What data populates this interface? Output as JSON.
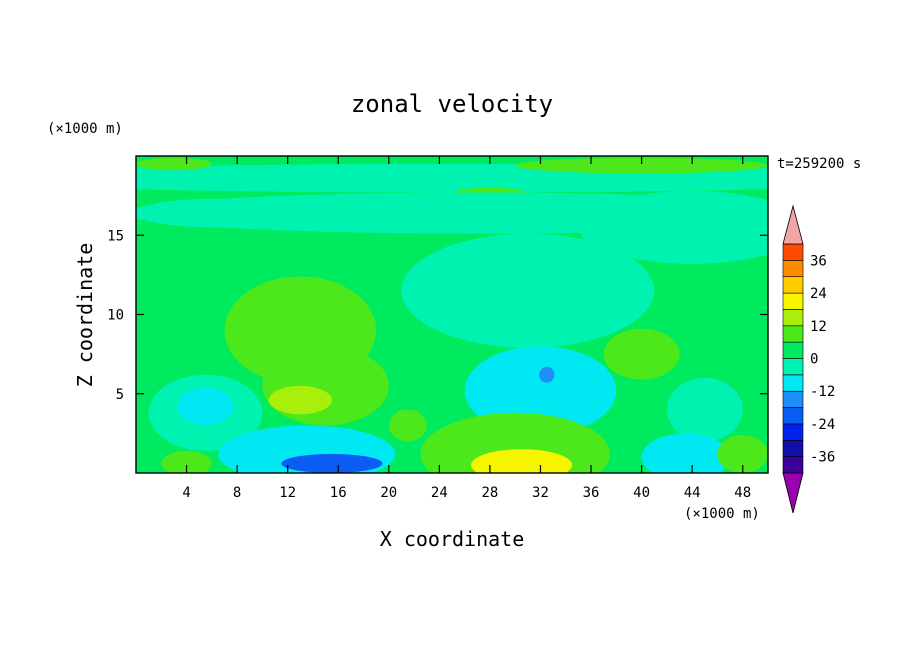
{
  "chart_data": {
    "type": "heatmap",
    "title": "zonal velocity",
    "xlabel": "X coordinate",
    "ylabel": "Z coordinate",
    "x_unit": "(×1000 m)",
    "y_unit": "(×1000 m)",
    "time_label": "t=259200 s",
    "xlim": [
      0,
      50
    ],
    "ylim": [
      0,
      20
    ],
    "x_ticks": [
      4,
      8,
      12,
      16,
      20,
      24,
      28,
      32,
      36,
      40,
      44,
      48
    ],
    "y_ticks": [
      5,
      10,
      15
    ],
    "grid": false,
    "colorbar": {
      "placement": "right",
      "tick_labels": [
        "36",
        "24",
        "12",
        "0",
        "-12",
        "-24",
        "-36"
      ],
      "tick_values": [
        36,
        24,
        12,
        0,
        -12,
        -24,
        -36
      ],
      "levels": [
        -42,
        -36,
        -30,
        -24,
        -18,
        -12,
        -6,
        0,
        6,
        12,
        18,
        24,
        30,
        36,
        42
      ],
      "colors": [
        "#9a00b0",
        "#3c0099",
        "#1010a8",
        "#0022ee",
        "#0a5cf2",
        "#1f8ff7",
        "#00e8f2",
        "#00f2b0",
        "#00ea60",
        "#4ce81c",
        "#a8ef0c",
        "#f6f600",
        "#ffcb00",
        "#ff8c00",
        "#ff4a00",
        "#e80000",
        "#f2a5a5"
      ]
    },
    "features": [
      {
        "name": "background",
        "x": 25,
        "z": 10,
        "rx": 40,
        "rz": 20,
        "value": 2
      },
      {
        "name": "upper band",
        "x": 25,
        "z": 18.6,
        "rx": 40,
        "rz": 0.9,
        "value": -4
      },
      {
        "name": "upper jet",
        "x": 40,
        "z": 19.4,
        "rx": 10,
        "rz": 0.5,
        "value": 9
      },
      {
        "name": "upper jet west",
        "x": 3,
        "z": 19.5,
        "rx": 3,
        "rz": 0.4,
        "value": 7
      },
      {
        "name": "upper positive",
        "x": 28,
        "z": 17.6,
        "rx": 3,
        "rz": 0.4,
        "value": 8
      },
      {
        "name": "mid-upper band",
        "x": 27,
        "z": 16.4,
        "rx": 28,
        "rz": 1.3,
        "value": -3
      },
      {
        "name": "mid-upper band east",
        "x": 44,
        "z": 15.5,
        "rx": 9,
        "rz": 2.3,
        "value": -2.5
      },
      {
        "name": "northwest band",
        "x": 6,
        "z": 16.4,
        "rx": 6,
        "rz": 0.9,
        "value": -2.5
      },
      {
        "name": "central negative",
        "x": 31,
        "z": 11.5,
        "rx": 10,
        "rz": 3.6,
        "value": -2.5
      },
      {
        "name": "west positive blob",
        "x": 13,
        "z": 9,
        "rx": 6,
        "rz": 3.4,
        "value": 9
      },
      {
        "name": "west positive lower",
        "x": 15,
        "z": 5.5,
        "rx": 5,
        "rz": 2.5,
        "value": 8
      },
      {
        "name": "west positive core",
        "x": 13,
        "z": 4.6,
        "rx": 2.5,
        "rz": 0.9,
        "value": 12
      },
      {
        "name": "southwest negative",
        "x": 5.5,
        "z": 3.8,
        "rx": 4.5,
        "rz": 2.4,
        "value": -6
      },
      {
        "name": "southwest core",
        "x": 5.5,
        "z": 4.2,
        "rx": 2.2,
        "rz": 1.2,
        "value": -9
      },
      {
        "name": "central negative lower",
        "x": 32,
        "z": 5.2,
        "rx": 6,
        "rz": 2.8,
        "value": -8
      },
      {
        "name": "central negative core",
        "x": 32.5,
        "z": 6.2,
        "rx": 0.6,
        "rz": 0.5,
        "value": -18
      },
      {
        "name": "east positive blob",
        "x": 40,
        "z": 7.5,
        "rx": 3,
        "rz": 1.6,
        "value": 9
      },
      {
        "name": "east negative",
        "x": 45,
        "z": 4,
        "rx": 3,
        "rz": 2,
        "value": -6
      },
      {
        "name": "bottom positive dome",
        "x": 30,
        "z": 1.2,
        "rx": 7.5,
        "rz": 2.6,
        "value": 10
      },
      {
        "name": "bottom positive core",
        "x": 30.5,
        "z": 0.5,
        "rx": 4,
        "rz": 1,
        "value": 19
      },
      {
        "name": "bottom negative west",
        "x": 13.5,
        "z": 1.2,
        "rx": 7,
        "rz": 1.8,
        "value": -10
      },
      {
        "name": "bottom negative core",
        "x": 15.5,
        "z": 0.6,
        "rx": 4,
        "rz": 0.6,
        "value": -20
      },
      {
        "name": "bottom negative east",
        "x": 43.5,
        "z": 1,
        "rx": 3.5,
        "rz": 1.5,
        "value": -9
      },
      {
        "name": "bottom positive east",
        "x": 48,
        "z": 1.2,
        "rx": 2,
        "rz": 1.2,
        "value": 7
      },
      {
        "name": "bottom west positive",
        "x": 4,
        "z": 0.6,
        "rx": 2,
        "rz": 0.8,
        "value": 7
      },
      {
        "name": "slanted positive",
        "x": 21.5,
        "z": 3,
        "rx": 1.5,
        "rz": 1,
        "value": 10
      }
    ]
  }
}
